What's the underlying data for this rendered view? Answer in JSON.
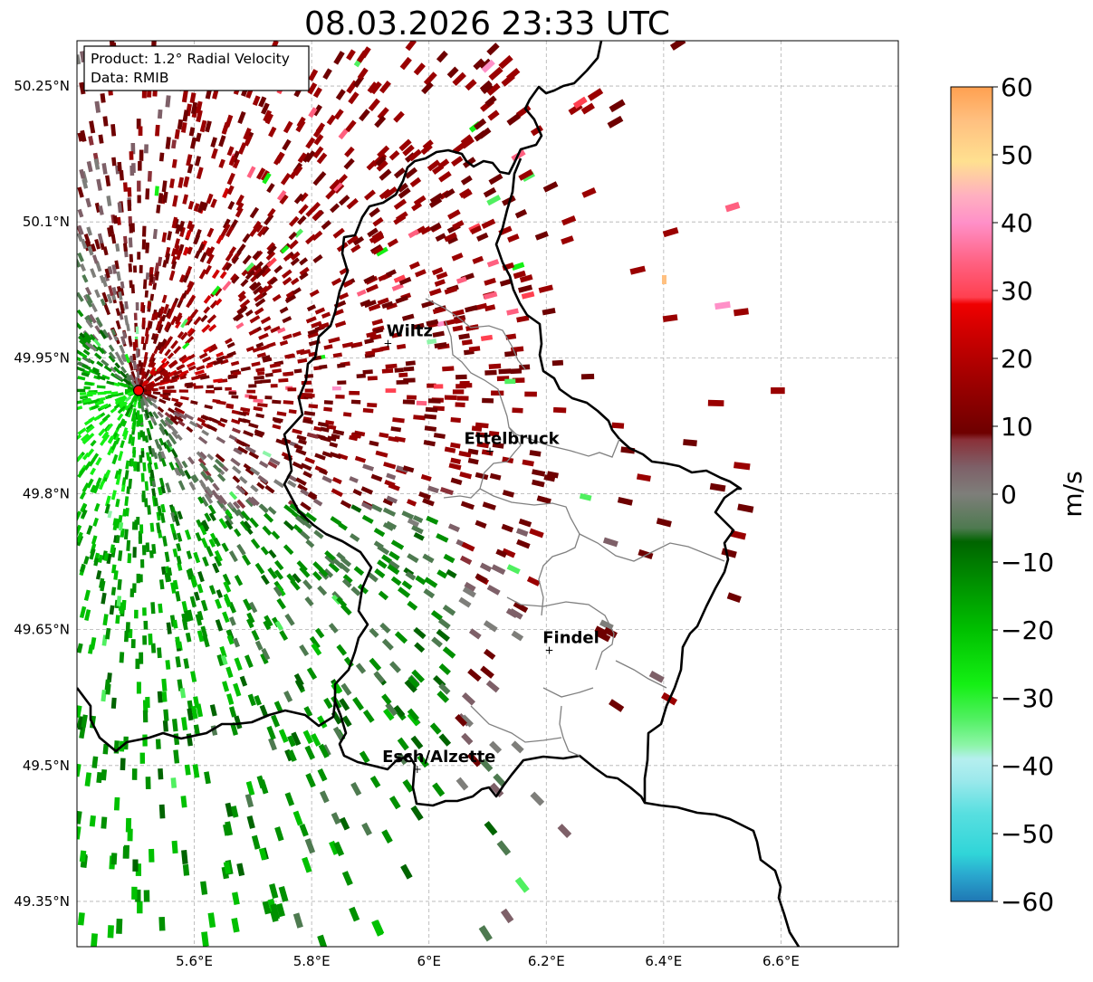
{
  "title": "08.03.2026 23:33 UTC",
  "info_box": {
    "product": "Product: 1.2° Radial Velocity",
    "source": "Data: RMIB"
  },
  "axes": {
    "lon_range": [
      5.4,
      6.8
    ],
    "lat_range": [
      49.3,
      50.3
    ],
    "lon_ticks": [
      5.6,
      5.8,
      6.0,
      6.2,
      6.4,
      6.6
    ],
    "lon_tick_labels": [
      "5.6°E",
      "5.8°E",
      "6°E",
      "6.2°E",
      "6.4°E",
      "6.6°E"
    ],
    "lat_ticks": [
      49.35,
      49.5,
      49.65,
      49.8,
      49.95,
      50.1,
      50.25
    ],
    "lat_tick_labels": [
      "49.35°N",
      "49.5°N",
      "49.65°N",
      "49.8°N",
      "49.95°N",
      "50.1°N",
      "50.25°N"
    ],
    "grid": true
  },
  "radar_site": {
    "lon": 5.505,
    "lat": 49.914
  },
  "cities": [
    {
      "name": "Wiltz",
      "lon": 5.93,
      "lat": 49.966
    },
    {
      "name": "Ettelbruck",
      "lon": 6.104,
      "lat": 49.847
    },
    {
      "name": "Findel",
      "lon": 6.205,
      "lat": 49.627
    },
    {
      "name": "Esch/Alzette",
      "lon": 5.98,
      "lat": 49.496
    }
  ],
  "colorbar": {
    "min": -60,
    "max": 60,
    "ticks": [
      60,
      50,
      40,
      30,
      20,
      10,
      0,
      -10,
      -20,
      -30,
      -40,
      -50,
      -60
    ],
    "tick_labels": [
      "60",
      "50",
      "40",
      "30",
      "20",
      "10",
      "0",
      "−10",
      "−20",
      "−30",
      "−40",
      "−50",
      "−60"
    ],
    "label": "m/s",
    "color_stops": [
      {
        "v": -60,
        "c": "#1f77b4"
      },
      {
        "v": -56,
        "c": "#2aa9cf"
      },
      {
        "v": -53,
        "c": "#30d5d8"
      },
      {
        "v": -47,
        "c": "#58dfe0"
      },
      {
        "v": -42,
        "c": "#9ee9ec"
      },
      {
        "v": -39,
        "c": "#b5efef"
      },
      {
        "v": -37,
        "c": "#8df5a8"
      },
      {
        "v": -33,
        "c": "#50f060"
      },
      {
        "v": -28,
        "c": "#14f014"
      },
      {
        "v": -20,
        "c": "#00c000"
      },
      {
        "v": -13,
        "c": "#009000"
      },
      {
        "v": -7,
        "c": "#006400"
      },
      {
        "v": -5,
        "c": "#4e7a50"
      },
      {
        "v": 0,
        "c": "#7e7e7a"
      },
      {
        "v": 4,
        "c": "#7e6068"
      },
      {
        "v": 8,
        "c": "#8a3038"
      },
      {
        "v": 9,
        "c": "#6e0000"
      },
      {
        "v": 16,
        "c": "#9a0000"
      },
      {
        "v": 24,
        "c": "#d00000"
      },
      {
        "v": 28,
        "c": "#f00000"
      },
      {
        "v": 29,
        "c": "#ff4050"
      },
      {
        "v": 34,
        "c": "#ff6080"
      },
      {
        "v": 40,
        "c": "#ff90c8"
      },
      {
        "v": 44,
        "c": "#ffb0c0"
      },
      {
        "v": 49,
        "c": "#ffe090"
      },
      {
        "v": 55,
        "c": "#ffc080"
      },
      {
        "v": 60,
        "c": "#ffa050"
      }
    ]
  },
  "colors": {
    "border": "#000000",
    "admin_border": "#808080",
    "radar_marker": "#ff0000",
    "grid": "#b0b0b0"
  }
}
